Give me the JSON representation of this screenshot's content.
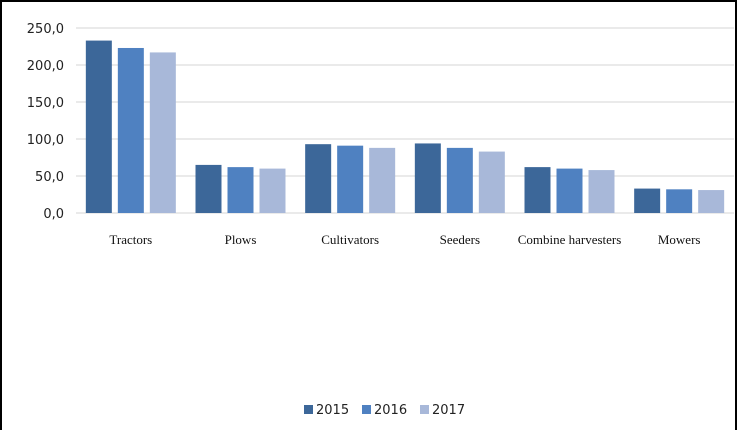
{
  "chart_data": {
    "type": "bar",
    "categories": [
      "Tractors",
      "Plows",
      "Cultivators",
      "Seeders",
      "Combine harvesters",
      "Mowers"
    ],
    "series": [
      {
        "name": "2015",
        "values": [
          233,
          65,
          93,
          94,
          62,
          33
        ],
        "color": "#3c6799"
      },
      {
        "name": "2016",
        "values": [
          223,
          62,
          91,
          88,
          60,
          32
        ],
        "color": "#4f81c1"
      },
      {
        "name": "2017",
        "values": [
          217,
          60,
          88,
          83,
          58,
          31
        ],
        "color": "#a8b8d9"
      }
    ],
    "yticks": [
      "0,0",
      "50,0",
      "100,0",
      "150,0",
      "200,0",
      "250,0"
    ],
    "ylim": [
      0,
      250
    ],
    "grid": true,
    "legend_position": "bottom",
    "title": "",
    "xlabel": "",
    "ylabel": ""
  }
}
